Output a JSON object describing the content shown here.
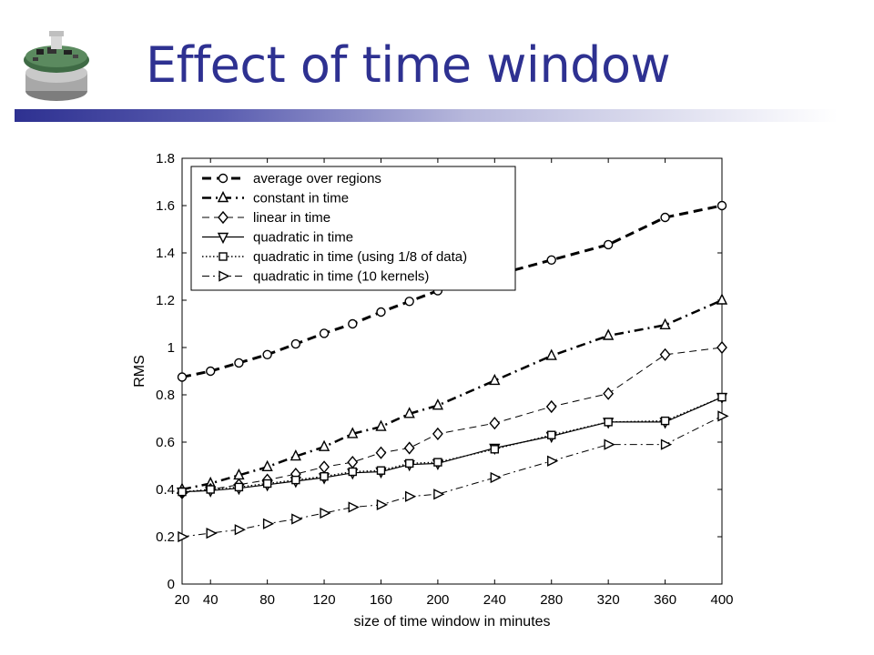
{
  "slide": {
    "title": "Effect of time window",
    "logo_icon": "sensor-mote-icon",
    "title_color": "#2e3191"
  },
  "chart_data": {
    "type": "line",
    "xlabel": "size of time window in minutes",
    "ylabel": "RMS",
    "xlim": [
      20,
      400
    ],
    "ylim": [
      0,
      1.8
    ],
    "xticks": [
      20,
      40,
      80,
      120,
      160,
      200,
      240,
      280,
      320,
      360,
      400
    ],
    "yticks": [
      0,
      0.2,
      0.4,
      0.6,
      0.8,
      1,
      1.2,
      1.4,
      1.6,
      1.8
    ],
    "grid": false,
    "legend_position": "top-left",
    "series": [
      {
        "name": "average over regions",
        "marker": "circle",
        "line": "dashed-bold",
        "x": [
          20,
          40,
          60,
          80,
          100,
          120,
          140,
          160,
          180,
          200,
          280,
          320,
          360,
          400
        ],
        "values": [
          0.875,
          0.9,
          0.935,
          0.97,
          1.015,
          1.06,
          1.1,
          1.15,
          1.195,
          1.24,
          1.37,
          1.435,
          1.55,
          1.6
        ]
      },
      {
        "name": "constant in time",
        "marker": "triangle-up",
        "line": "dashdot-bold",
        "x": [
          20,
          40,
          60,
          80,
          100,
          120,
          140,
          160,
          180,
          200,
          240,
          280,
          320,
          360,
          400
        ],
        "values": [
          0.4,
          0.425,
          0.46,
          0.495,
          0.54,
          0.58,
          0.635,
          0.665,
          0.72,
          0.755,
          0.86,
          0.965,
          1.05,
          1.095,
          1.2
        ]
      },
      {
        "name": "linear in time",
        "marker": "diamond",
        "line": "dashed",
        "x": [
          20,
          40,
          60,
          80,
          100,
          120,
          140,
          160,
          180,
          200,
          240,
          280,
          320,
          360,
          400
        ],
        "values": [
          0.385,
          0.4,
          0.42,
          0.44,
          0.465,
          0.495,
          0.515,
          0.555,
          0.575,
          0.635,
          0.68,
          0.75,
          0.805,
          0.97,
          1.0
        ]
      },
      {
        "name": "quadratic in time",
        "marker": "triangle-down",
        "line": "solid",
        "x": [
          20,
          40,
          60,
          80,
          100,
          120,
          140,
          160,
          180,
          200,
          240,
          280,
          320,
          360,
          400
        ],
        "values": [
          0.39,
          0.395,
          0.405,
          0.42,
          0.435,
          0.45,
          0.47,
          0.475,
          0.505,
          0.51,
          0.575,
          0.625,
          0.685,
          0.685,
          0.79
        ]
      },
      {
        "name": "quadratic in time (using 1/8 of data)",
        "marker": "square",
        "line": "dotted",
        "x": [
          20,
          40,
          60,
          80,
          100,
          120,
          140,
          160,
          180,
          200,
          240,
          280,
          320,
          360,
          400
        ],
        "values": [
          0.39,
          0.4,
          0.41,
          0.425,
          0.44,
          0.455,
          0.475,
          0.48,
          0.51,
          0.515,
          0.57,
          0.63,
          0.685,
          0.69,
          0.79
        ]
      },
      {
        "name": "quadratic in time (10 kernels)",
        "marker": "triangle-right",
        "line": "dashdot",
        "x": [
          20,
          40,
          60,
          80,
          100,
          120,
          140,
          160,
          180,
          200,
          240,
          280,
          320,
          360,
          400
        ],
        "values": [
          0.2,
          0.215,
          0.23,
          0.255,
          0.275,
          0.3,
          0.325,
          0.335,
          0.37,
          0.38,
          0.45,
          0.52,
          0.59,
          0.59,
          0.71
        ]
      }
    ]
  }
}
